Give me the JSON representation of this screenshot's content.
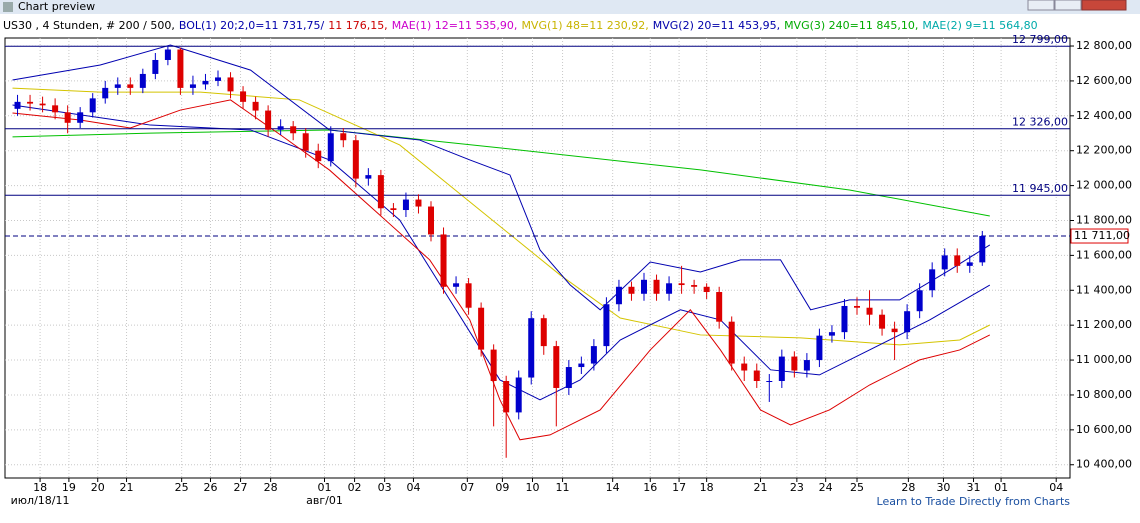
{
  "window_title": "Chart preview",
  "chart_data": {
    "type": "candlestick",
    "header": [
      {
        "text": "US30 , 4 Stunden, # 200 / 500,",
        "color": "#000000"
      },
      {
        "text": "BOL(1) 20;2,0=11 731,75/",
        "color": "#0000aa"
      },
      {
        "text": "11 176,15,",
        "color": "#cc0000"
      },
      {
        "text": "MAE(1) 12=11 535,90,",
        "color": "#cc00cc"
      },
      {
        "text": "MVG(1) 48=11 230,92,",
        "color": "#c8b400"
      },
      {
        "text": "MVG(2) 20=11 453,95,",
        "color": "#0000aa"
      },
      {
        "text": "MVG(3) 240=11 845,10,",
        "color": "#00aa00"
      },
      {
        "text": "MAE(2) 9=11 564,80",
        "color": "#00aaaa"
      }
    ],
    "up_color": "#0000cc",
    "down_color": "#dd0000",
    "x": [
      0,
      1,
      2,
      3,
      4,
      5,
      6,
      7,
      8,
      9,
      10,
      11,
      12,
      13,
      14,
      15,
      16,
      17,
      18,
      19,
      20,
      21,
      22,
      23,
      24,
      25,
      26,
      27,
      28,
      29,
      30,
      31,
      32,
      33,
      34,
      35,
      36,
      37,
      38,
      39,
      40,
      41,
      42,
      43,
      44,
      45,
      46,
      47,
      48,
      49,
      50,
      51,
      52,
      53,
      54,
      55,
      56,
      57,
      58,
      59,
      60,
      61,
      62,
      63,
      64,
      65,
      66,
      67,
      68,
      69,
      70,
      71,
      72,
      73,
      74,
      75,
      76,
      77
    ],
    "open": [
      12440,
      12480,
      12470,
      12460,
      12420,
      12360,
      12420,
      12500,
      12560,
      12580,
      12560,
      12640,
      12720,
      12780,
      12560,
      12580,
      12600,
      12620,
      12540,
      12480,
      12430,
      12320,
      12340,
      12300,
      12200,
      12140,
      12300,
      12260,
      12040,
      12060,
      11870,
      11860,
      11920,
      11880,
      11720,
      11420,
      11440,
      11300,
      11060,
      10880,
      10700,
      10900,
      11240,
      11080,
      10840,
      10960,
      10980,
      11080,
      11320,
      11420,
      11380,
      11460,
      11380,
      11440,
      11430,
      11420,
      11390,
      11220,
      10980,
      10940,
      10880,
      10880,
      11020,
      10940,
      11000,
      11140,
      11160,
      11310,
      11300,
      11260,
      11180,
      11160,
      11280,
      11400,
      11520,
      11600,
      11540,
      11560
    ],
    "high": [
      12520,
      12520,
      12510,
      12500,
      12460,
      12450,
      12530,
      12600,
      12620,
      12620,
      12670,
      12760,
      12800,
      12790,
      12630,
      12640,
      12660,
      12650,
      12570,
      12510,
      12460,
      12380,
      12370,
      12330,
      12240,
      12340,
      12330,
      12290,
      12100,
      12090,
      11900,
      11960,
      11950,
      11910,
      11760,
      11480,
      11470,
      11330,
      11090,
      10910,
      10940,
      11280,
      11260,
      11110,
      11000,
      11020,
      11120,
      11360,
      11460,
      11450,
      11500,
      11490,
      11480,
      11540,
      11460,
      11440,
      11420,
      11250,
      11020,
      10980,
      10920,
      11060,
      11050,
      11040,
      11180,
      11200,
      11350,
      11360,
      11400,
      11290,
      11220,
      11320,
      11440,
      11560,
      11640,
      11640,
      11600,
      11740
    ],
    "low": [
      12400,
      12430,
      12420,
      12380,
      12300,
      12330,
      12390,
      12470,
      12520,
      12520,
      12530,
      12610,
      12690,
      12520,
      12520,
      12550,
      12570,
      12500,
      12440,
      12380,
      12280,
      12290,
      12260,
      12160,
      12100,
      12110,
      12220,
      11990,
      12000,
      11830,
      11820,
      11820,
      11840,
      11680,
      11380,
      11380,
      11260,
      11020,
      10620,
      10440,
      10660,
      10860,
      11030,
      10620,
      10800,
      10920,
      10940,
      11040,
      11280,
      11340,
      11340,
      11340,
      11340,
      11380,
      11380,
      11350,
      11180,
      10940,
      10880,
      10840,
      10760,
      10840,
      10900,
      10900,
      10960,
      11100,
      11120,
      11260,
      11200,
      11140,
      11000,
      11120,
      11240,
      11360,
      11480,
      11500,
      11500,
      11540
    ],
    "close": [
      12480,
      12470,
      12460,
      12420,
      12360,
      12420,
      12500,
      12560,
      12580,
      12560,
      12640,
      12720,
      12780,
      12560,
      12580,
      12600,
      12620,
      12540,
      12480,
      12430,
      12320,
      12340,
      12300,
      12200,
      12140,
      12300,
      12260,
      12040,
      12060,
      11870,
      11860,
      11920,
      11880,
      11720,
      11420,
      11440,
      11300,
      11060,
      10880,
      10700,
      10900,
      11240,
      11080,
      10840,
      10960,
      10980,
      11080,
      11320,
      11420,
      11380,
      11460,
      11380,
      11440,
      11430,
      11420,
      11390,
      11220,
      10980,
      10940,
      10880,
      10880,
      11020,
      10940,
      11000,
      11140,
      11160,
      11310,
      11300,
      11260,
      11180,
      11160,
      11280,
      11400,
      11520,
      11600,
      11540,
      11560,
      11711
    ],
    "lines": [
      {
        "color": "#00c000",
        "x": [
          -0.4,
          10.6,
          24.9,
          38.5,
          54.5,
          66.4,
          77.6
        ],
        "values": [
          12279,
          12301,
          12319,
          12216,
          12090,
          11975,
          11826
        ]
      },
      {
        "color": "#d4c400",
        "x": [
          -0.4,
          6.6,
          14.6,
          22.5,
          30.5,
          36.9,
          43.3,
          48.1,
          54.5,
          62.5,
          70.4,
          75.2,
          77.6
        ],
        "values": [
          12559,
          12536,
          12536,
          12491,
          12233,
          11860,
          11488,
          11241,
          11144,
          11127,
          11087,
          11115,
          11201
        ]
      },
      {
        "color": "#0000b0",
        "x": [
          -0.4,
          6.6,
          12.2,
          18.6,
          24.9,
          32.1,
          36.1,
          39.3,
          41.7,
          44.1,
          46.5,
          50.5,
          54.5,
          57.7,
          60.9,
          63.3,
          66.4,
          70.4,
          74.4,
          77.6
        ],
        "values": [
          12605,
          12691,
          12806,
          12662,
          12319,
          12261,
          12147,
          12061,
          11631,
          11431,
          11288,
          11562,
          11505,
          11574,
          11574,
          11288,
          11345,
          11345,
          11516,
          11660
        ]
      },
      {
        "color": "#0000b0",
        "x": [
          -0.4,
          10.6,
          18.6,
          24.9,
          30.5,
          34.5,
          38.5,
          41.7,
          44.9,
          48.1,
          52.9,
          56.1,
          60.1,
          64.0,
          68.0,
          72.8,
          77.6
        ],
        "values": [
          12462,
          12347,
          12319,
          12147,
          11803,
          11345,
          10886,
          10772,
          10886,
          11115,
          11288,
          11230,
          10944,
          10915,
          11058,
          11230,
          11430
        ]
      },
      {
        "color": "#dd0000",
        "x": [
          -0.4,
          5.0,
          9.0,
          13.0,
          17.0,
          21.0,
          24.9,
          28.9,
          32.9,
          36.1,
          38.5,
          40.1,
          42.5,
          46.5,
          50.5,
          53.7,
          56.1,
          59.3,
          61.7,
          64.8,
          68.0,
          72.0,
          75.2,
          77.6
        ],
        "values": [
          12416,
          12376,
          12330,
          12433,
          12491,
          12290,
          12089,
          11832,
          11574,
          11230,
          10772,
          10543,
          10571,
          10714,
          11058,
          11288,
          11058,
          10714,
          10628,
          10714,
          10857,
          11001,
          11058,
          11144
        ]
      }
    ],
    "levels": [
      {
        "value": 12799,
        "label": "12 799,00"
      },
      {
        "value": 12326,
        "label": "12 326,00"
      },
      {
        "value": 11945,
        "label": "11 945,00"
      }
    ],
    "current_price": {
      "value": 11711,
      "label": "11 711,00"
    },
    "xlim": [
      -1,
      84
    ],
    "ylim": [
      10324,
      12846
    ],
    "yticks": [
      {
        "value": 10400,
        "label": "10 400,00"
      },
      {
        "value": 10600,
        "label": "10 600,00"
      },
      {
        "value": 10800,
        "label": "10 800,00"
      },
      {
        "value": 11000,
        "label": "11 000,00"
      },
      {
        "value": 11200,
        "label": "11 200,00"
      },
      {
        "value": 11400,
        "label": "11 400,00"
      },
      {
        "value": 11600,
        "label": "11 600,00"
      },
      {
        "value": 11800,
        "label": "11 800,00"
      },
      {
        "value": 12000,
        "label": "12 000,00"
      },
      {
        "value": 12200,
        "label": "12 200,00"
      },
      {
        "value": 12400,
        "label": "12 400,00"
      },
      {
        "value": 12600,
        "label": "12 600,00"
      },
      {
        "value": 12800,
        "label": "12 800,00"
      }
    ],
    "xticks": [
      {
        "value": 1.8,
        "label": "18"
      },
      {
        "value": 4.1,
        "label": "19"
      },
      {
        "value": 6.4,
        "label": "20"
      },
      {
        "value": 8.7,
        "label": "21"
      },
      {
        "value": 13.1,
        "label": "25"
      },
      {
        "value": 15.4,
        "label": "26"
      },
      {
        "value": 17.8,
        "label": "27"
      },
      {
        "value": 20.2,
        "label": "28"
      },
      {
        "value": 24.5,
        "label": "01"
      },
      {
        "value": 26.9,
        "label": "02"
      },
      {
        "value": 29.3,
        "label": "03"
      },
      {
        "value": 31.6,
        "label": "04"
      },
      {
        "value": 35.9,
        "label": "07"
      },
      {
        "value": 38.7,
        "label": "09"
      },
      {
        "value": 41.1,
        "label": "10"
      },
      {
        "value": 43.5,
        "label": "11"
      },
      {
        "value": 47.5,
        "label": "14"
      },
      {
        "value": 50.5,
        "label": "16"
      },
      {
        "value": 52.8,
        "label": "17"
      },
      {
        "value": 55.0,
        "label": "18"
      },
      {
        "value": 59.3,
        "label": "21"
      },
      {
        "value": 62.2,
        "label": "23"
      },
      {
        "value": 64.5,
        "label": "24"
      },
      {
        "value": 67.0,
        "label": "25"
      },
      {
        "value": 71.1,
        "label": "28"
      },
      {
        "value": 73.9,
        "label": "30"
      },
      {
        "value": 76.3,
        "label": "31"
      },
      {
        "value": 78.5,
        "label": "01"
      },
      {
        "value": 82.9,
        "label": "04"
      }
    ],
    "month_labels": [
      {
        "value": 1.8,
        "label": "июл/18/11"
      },
      {
        "value": 24.5,
        "label": "авг/01"
      }
    ],
    "grid": true,
    "link": "Learn to Trade Directly from Charts"
  }
}
